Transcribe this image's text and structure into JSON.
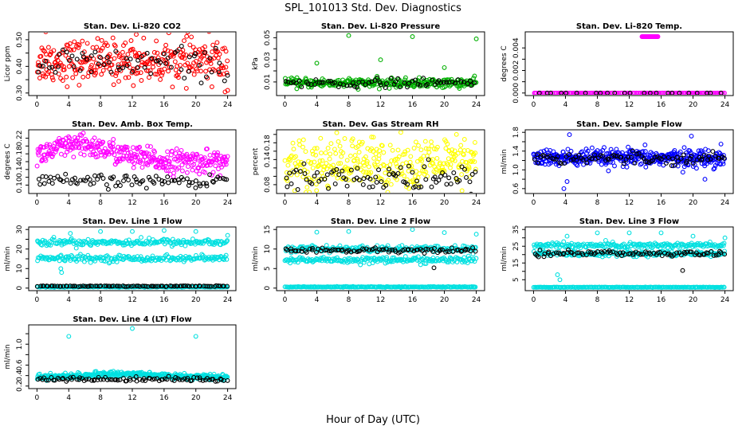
{
  "figure": {
    "title": "SPL_101013  Std. Dev. Diagnostics",
    "xlabel": "Hour of Day (UTC)",
    "x_ticks": [
      0,
      4,
      8,
      12,
      16,
      20,
      24
    ]
  },
  "chart_data": [
    {
      "type": "scatter",
      "title": "Stan. Dev. Li-820 CO2",
      "ylabel": "Licor ppm",
      "xlim": [
        0,
        24
      ],
      "ylim": [
        0.3,
        0.52
      ],
      "y_ticks": [
        0.3,
        0.35,
        0.4,
        0.45,
        0.5
      ],
      "y_tick_labels": [
        "0.30",
        "",
        "0.40",
        "",
        "0.50"
      ],
      "series": [
        {
          "color": "#ff0000",
          "pattern": "band",
          "count": 330,
          "center": 0.42,
          "spread": 0.04,
          "outliers": [
            [
              1.1,
              0.53
            ],
            [
              12.5,
              0.52
            ],
            [
              24,
              0.31
            ]
          ]
        },
        {
          "color": "#000000",
          "pattern": "band",
          "count": 70,
          "center": 0.41,
          "spread": 0.03
        }
      ]
    },
    {
      "type": "scatter",
      "title": "Stan. Dev. Li-820 Pressure",
      "ylabel": "kPa",
      "xlim": [
        0,
        24
      ],
      "ylim": [
        0.0,
        0.053
      ],
      "y_ticks": [
        0.01,
        0.02,
        0.03,
        0.04,
        0.05
      ],
      "y_tick_labels": [
        "0.01",
        "",
        "0.03",
        "",
        "0.05"
      ],
      "series": [
        {
          "color": "#00b000",
          "pattern": "band",
          "count": 320,
          "center": 0.009,
          "spread": 0.002,
          "outliers": [
            [
              4,
              0.027
            ],
            [
              8,
              0.052
            ],
            [
              12,
              0.03
            ],
            [
              16,
              0.051
            ],
            [
              20,
              0.023
            ],
            [
              24,
              0.049
            ]
          ]
        },
        {
          "color": "#000000",
          "pattern": "band",
          "count": 70,
          "center": 0.009,
          "spread": 0.002
        }
      ]
    },
    {
      "type": "scatter",
      "title": "Stan. Dev. Li-820 Temp.",
      "ylabel": "degrees C",
      "xlim": [
        0,
        24
      ],
      "ylim": [
        0.0,
        0.0052
      ],
      "y_ticks": [
        0.0,
        0.001,
        0.002,
        0.003,
        0.004
      ],
      "y_tick_labels": [
        "0.000",
        "",
        "0.002",
        "",
        "0.004"
      ],
      "series": [
        {
          "color": "#ff00ff",
          "pattern": "band",
          "count": 160,
          "center": 0.0,
          "spread": 0.0,
          "cluster": [
            13.6,
            15.6,
            0.005
          ]
        },
        {
          "color": "#000000",
          "pattern": "band",
          "count": 24,
          "center": 0.0,
          "spread": 0.0
        }
      ]
    },
    {
      "type": "scatter",
      "title": "Stan. Dev. Amb. Box Temp.",
      "ylabel": "degrees C",
      "xlim": [
        0,
        24
      ],
      "ylim": [
        0.085,
        0.235
      ],
      "y_ticks": [
        0.1,
        0.12,
        0.14,
        0.16,
        0.18,
        0.2,
        0.22
      ],
      "y_tick_labels": [
        "0.10",
        "",
        "0.14",
        "",
        "0.18",
        "",
        "0.22"
      ],
      "series": [
        {
          "color": "#ff00ff",
          "pattern": "hump",
          "count": 360,
          "center": 0.16,
          "spread": 0.015,
          "amp": 0.04,
          "peak": 5.5
        },
        {
          "color": "#000000",
          "pattern": "band",
          "count": 90,
          "center": 0.11,
          "spread": 0.008
        }
      ]
    },
    {
      "type": "scatter",
      "title": "Stan. Dev. Gas Stream RH",
      "ylabel": "percent",
      "xlim": [
        0,
        24
      ],
      "ylim": [
        0.065,
        0.205
      ],
      "y_ticks": [
        0.08,
        0.1,
        0.12,
        0.14,
        0.16,
        0.18,
        0.2
      ],
      "y_tick_labels": [
        "0.08",
        "",
        "",
        "0.14",
        "",
        "0.18",
        ""
      ],
      "series": [
        {
          "color": "#ffff00",
          "pattern": "band",
          "count": 340,
          "center": 0.13,
          "spread": 0.032
        },
        {
          "color": "#000000",
          "pattern": "band",
          "count": 90,
          "center": 0.095,
          "spread": 0.018
        }
      ]
    },
    {
      "type": "scatter",
      "title": "Stan. Dev. Sample Flow",
      "ylabel": "ml/min",
      "xlim": [
        0,
        24
      ],
      "ylim": [
        0.55,
        1.8
      ],
      "y_ticks": [
        0.6,
        0.8,
        1.0,
        1.2,
        1.4,
        1.6,
        1.8
      ],
      "y_tick_labels": [
        "0.6",
        "",
        "1.0",
        "",
        "1.4",
        "",
        "1.8"
      ],
      "series": [
        {
          "color": "#0000ff",
          "pattern": "band",
          "count": 420,
          "center": 1.25,
          "spread": 0.09,
          "outliers": [
            [
              3.8,
              0.6
            ],
            [
              4.2,
              0.75
            ],
            [
              4.5,
              1.75
            ],
            [
              19.8,
              1.72
            ],
            [
              21.5,
              0.8
            ],
            [
              23.5,
              1.55
            ]
          ]
        },
        {
          "color": "#000000",
          "pattern": "band",
          "count": 90,
          "center": 1.25,
          "spread": 0.06
        }
      ]
    },
    {
      "type": "scatter",
      "title": "Stan. Dev. Line 1 Flow",
      "ylabel": "ml/min",
      "xlim": [
        0,
        24
      ],
      "ylim": [
        0,
        30
      ],
      "y_ticks": [
        0,
        5,
        10,
        15,
        20,
        25,
        30
      ],
      "y_tick_labels": [
        "0",
        "",
        "10",
        "",
        "20",
        "",
        "30"
      ],
      "series": [
        {
          "color": "#00e0e0",
          "pattern": "band",
          "count": 200,
          "center": 23.5,
          "spread": 0.9,
          "outliers": [
            [
              4.2,
              28
            ],
            [
              8,
              29
            ],
            [
              12,
              29
            ],
            [
              16,
              29.5
            ],
            [
              20,
              29
            ],
            [
              24,
              27
            ]
          ]
        },
        {
          "color": "#00e0e0",
          "pattern": "band",
          "count": 200,
          "center": 15.2,
          "spread": 0.8,
          "outliers": [
            [
              3.0,
              10
            ],
            [
              3.1,
              8
            ]
          ]
        },
        {
          "color": "#00e0e0",
          "pattern": "band",
          "count": 200,
          "center": 0.6,
          "spread": 0.1
        },
        {
          "color": "#000000",
          "pattern": "band",
          "count": 90,
          "center": 1.0,
          "spread": 0.1
        }
      ]
    },
    {
      "type": "scatter",
      "title": "Stan. Dev. Line 2 Flow",
      "ylabel": "ml/min",
      "xlim": [
        0,
        24
      ],
      "ylim": [
        0,
        15
      ],
      "y_ticks": [
        0,
        5,
        10,
        15
      ],
      "y_tick_labels": [
        "0",
        "5",
        "10",
        "15"
      ],
      "series": [
        {
          "color": "#00e0e0",
          "pattern": "band",
          "count": 200,
          "center": 10.0,
          "spread": 0.4,
          "outliers": [
            [
              4,
              14.3
            ],
            [
              8,
              14.5
            ],
            [
              16,
              15
            ],
            [
              20,
              14.2
            ],
            [
              24,
              13.8
            ]
          ]
        },
        {
          "color": "#00e0e0",
          "pattern": "band",
          "count": 200,
          "center": 7.2,
          "spread": 0.4
        },
        {
          "color": "#00e0e0",
          "pattern": "band",
          "count": 200,
          "center": 0.3,
          "spread": 0.05
        },
        {
          "color": "#000000",
          "pattern": "band",
          "count": 90,
          "center": 9.7,
          "spread": 0.3,
          "outliers": [
            [
              18.7,
              5.2
            ]
          ]
        }
      ]
    },
    {
      "type": "scatter",
      "title": "Stan. Dev. Line 3 Flow",
      "ylabel": "ml/min",
      "xlim": [
        0,
        24
      ],
      "ylim": [
        0,
        35
      ],
      "y_ticks": [
        5,
        10,
        15,
        20,
        25,
        30,
        35
      ],
      "y_tick_labels": [
        "5",
        "",
        "15",
        "",
        "25",
        "",
        "35"
      ],
      "series": [
        {
          "color": "#00e0e0",
          "pattern": "band",
          "count": 200,
          "center": 25.5,
          "spread": 0.9,
          "outliers": [
            [
              4.2,
              31
            ],
            [
              8,
              33
            ],
            [
              12,
              33
            ],
            [
              16,
              33
            ],
            [
              20,
              31
            ],
            [
              24,
              30
            ]
          ]
        },
        {
          "color": "#00e0e0",
          "pattern": "band",
          "count": 200,
          "center": 20.5,
          "spread": 0.8,
          "outliers": [
            [
              3.0,
              8
            ],
            [
              3.3,
              5
            ]
          ]
        },
        {
          "color": "#00e0e0",
          "pattern": "band",
          "count": 200,
          "center": 0.5,
          "spread": 0.05
        },
        {
          "color": "#000000",
          "pattern": "band",
          "count": 90,
          "center": 20.8,
          "spread": 0.8,
          "outliers": [
            [
              18.7,
              10.5
            ]
          ]
        }
      ]
    },
    {
      "type": "scatter",
      "title": "Stan. Dev. Line 4 (LT) Flow",
      "ylabel": "ml/min",
      "xlim": [
        0,
        24
      ],
      "ylim": [
        0.2,
        1.32
      ],
      "y_ticks": [
        0.2,
        0.4,
        0.6,
        0.8,
        1.0,
        1.2
      ],
      "y_tick_labels": [
        "0.2",
        "0.4",
        "0.6",
        "",
        "1.0",
        ""
      ],
      "series": [
        {
          "color": "#00e0e0",
          "pattern": "hump",
          "count": 380,
          "center": 0.37,
          "spread": 0.025,
          "amp": 0.06,
          "peak": 11,
          "outliers": [
            [
              4,
              1.15
            ],
            [
              12,
              1.3
            ],
            [
              20,
              1.15
            ]
          ]
        },
        {
          "color": "#000000",
          "pattern": "band",
          "count": 90,
          "center": 0.33,
          "spread": 0.02
        }
      ]
    }
  ]
}
